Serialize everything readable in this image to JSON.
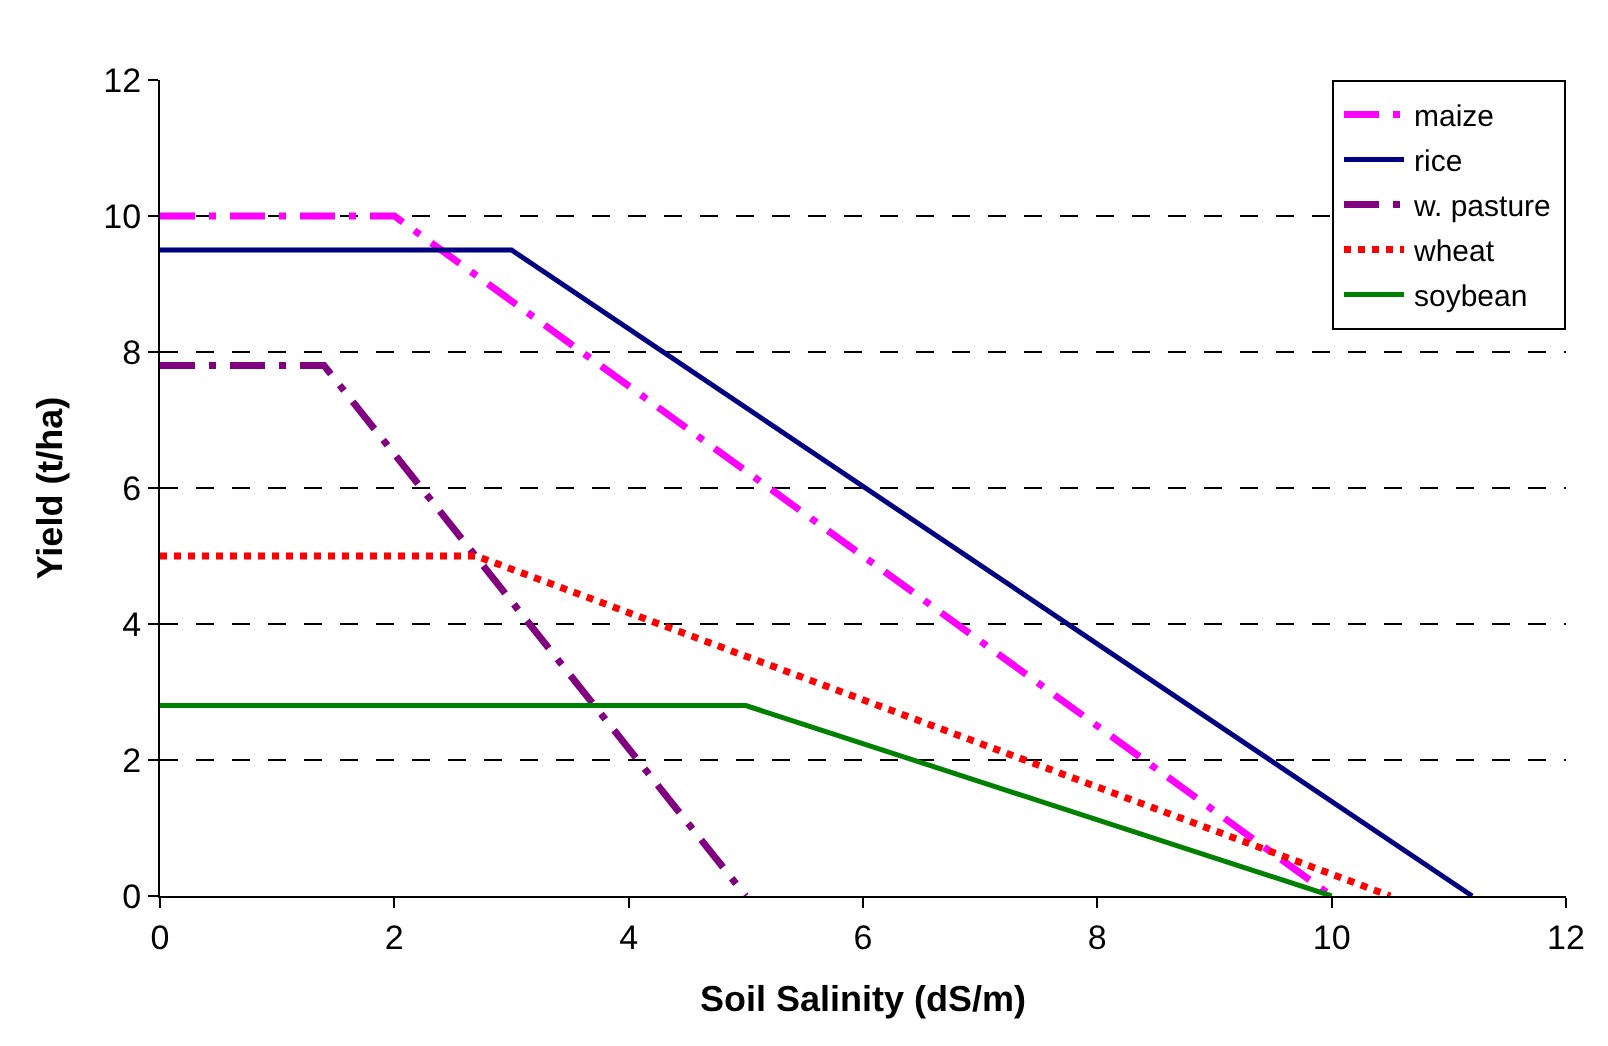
{
  "chart_data": {
    "type": "line",
    "xlabel": "Soil Salinity (dS/m)",
    "ylabel": "Yield (t/ha)",
    "xlim": [
      0,
      12
    ],
    "xticks": [
      0,
      2,
      4,
      6,
      8,
      10,
      12
    ],
    "ylim": [
      0,
      12
    ],
    "yticks": [
      0,
      2,
      4,
      6,
      8,
      10,
      12
    ],
    "grid": "y",
    "legend": "top right",
    "marker": "none",
    "series": [
      {
        "name": "maize",
        "color": "#ff00ff",
        "line_style": "dashed",
        "x": [
          0,
          2,
          10
        ],
        "values": [
          10,
          10,
          0
        ]
      },
      {
        "name": "rice",
        "color": "#000080",
        "line_style": "solid",
        "x": [
          0,
          3,
          11.2
        ],
        "values": [
          9.5,
          9.5,
          0
        ]
      },
      {
        "name": "w. pasture",
        "color": "#800080",
        "line_style": "dashed",
        "x": [
          0,
          1.4,
          5
        ],
        "values": [
          7.8,
          7.8,
          0
        ]
      },
      {
        "name": "wheat",
        "color": "#ff0000",
        "line_style": "dotted",
        "x": [
          0,
          2.7,
          10.5
        ],
        "values": [
          5,
          5,
          0
        ]
      },
      {
        "name": "soybean",
        "color": "#008000",
        "line_style": "solid",
        "x": [
          0,
          5,
          10
        ],
        "values": [
          2.8,
          2.8,
          0
        ]
      }
    ]
  }
}
